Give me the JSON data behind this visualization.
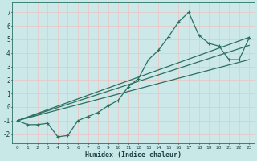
{
  "xlabel": "Humidex (Indice chaleur)",
  "background_color": "#c8e8e8",
  "plot_bg_color": "#cce8e8",
  "grid_color": "#e8c8c8",
  "line_color": "#2a7060",
  "spine_color": "#2a7060",
  "xlabel_color": "#1a4040",
  "tick_color": "#1a4040",
  "xlim": [
    -0.5,
    23.5
  ],
  "ylim": [
    -2.7,
    7.7
  ],
  "xticks": [
    0,
    1,
    2,
    3,
    4,
    5,
    6,
    7,
    8,
    9,
    10,
    11,
    12,
    13,
    14,
    15,
    16,
    17,
    18,
    19,
    20,
    21,
    22,
    23
  ],
  "yticks": [
    -2,
    -1,
    0,
    1,
    2,
    3,
    4,
    5,
    6,
    7
  ],
  "main_x": [
    0,
    1,
    2,
    3,
    4,
    5,
    6,
    7,
    8,
    9,
    10,
    11,
    12,
    13,
    14,
    15,
    16,
    17,
    18,
    19,
    20,
    21,
    22,
    23
  ],
  "main_y": [
    -1.0,
    -1.3,
    -1.3,
    -1.2,
    -2.2,
    -2.1,
    -1.0,
    -0.7,
    -0.4,
    0.1,
    0.5,
    1.5,
    2.1,
    3.5,
    4.2,
    5.2,
    6.3,
    7.0,
    5.3,
    4.7,
    4.5,
    3.5,
    3.5,
    5.1
  ],
  "line1_x": [
    0,
    23
  ],
  "line1_y": [
    -1.0,
    5.15
  ],
  "line2_x": [
    0,
    23
  ],
  "line2_y": [
    -1.0,
    4.55
  ],
  "line3_x": [
    0,
    23
  ],
  "line3_y": [
    -1.0,
    3.5
  ]
}
